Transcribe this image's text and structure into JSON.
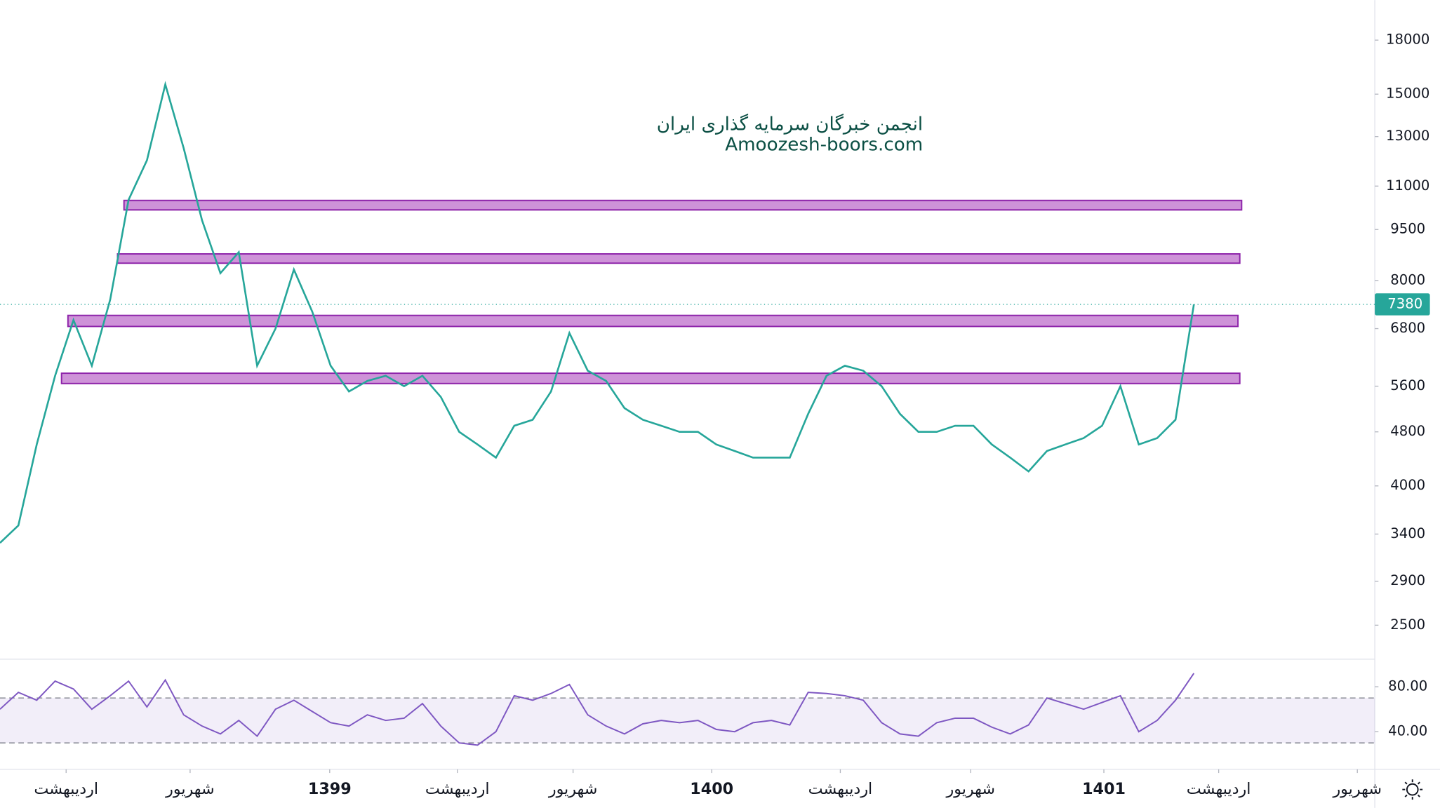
{
  "chart_data": [
    {
      "type": "line",
      "log_scale": true,
      "grid": false,
      "color": "#26a69a",
      "annotations": [
        "انجمن خبرگان سرمایه گذاری ایران",
        "Amoozesh-boors.com"
      ],
      "x": [
        0,
        2,
        4,
        6,
        8,
        10,
        12,
        14,
        16,
        18,
        20,
        22,
        24,
        26,
        28,
        30,
        32,
        34,
        36,
        38,
        40,
        42,
        44,
        46,
        48,
        50,
        52,
        54,
        56,
        58,
        60,
        62,
        64,
        66,
        68,
        70,
        72,
        74,
        76,
        78,
        80,
        82,
        84,
        86,
        88,
        90,
        92,
        94,
        96,
        98,
        100,
        102,
        104,
        106,
        108,
        110,
        112,
        114,
        116,
        118,
        120,
        122,
        124,
        126,
        128,
        130
      ],
      "values": [
        3300,
        3500,
        4600,
        5800,
        7000,
        6000,
        7500,
        10500,
        12000,
        15500,
        12500,
        9800,
        8200,
        8800,
        6000,
        6800,
        8300,
        7200,
        6000,
        5500,
        5700,
        5800,
        5600,
        5800,
        5400,
        4800,
        4600,
        4400,
        4900,
        5000,
        5500,
        6700,
        5900,
        5700,
        5200,
        5000,
        4900,
        4800,
        4800,
        4600,
        4500,
        4400,
        4400,
        4400,
        5100,
        5800,
        6000,
        5900,
        5600,
        5100,
        4800,
        4800,
        4900,
        4900,
        4600,
        4400,
        4200,
        4500,
        4600,
        4700,
        4900,
        5600,
        4600,
        4700,
        5000,
        7380
      ],
      "xlim": [
        0,
        149.7
      ],
      "ylim": [
        2250,
        20600
      ],
      "yticks": [
        18000,
        15000,
        13000,
        11000,
        9500,
        8000,
        6800,
        5600,
        4800,
        4000,
        3400,
        2900,
        2500
      ],
      "zones": [
        {
          "from": 10150,
          "to": 10480,
          "x_start": 13.5,
          "x_end": 135.2
        },
        {
          "from": 8480,
          "to": 8750,
          "x_start": 12.8,
          "x_end": 135
        },
        {
          "from": 6850,
          "to": 7110,
          "x_start": 7.4,
          "x_end": 134.8
        },
        {
          "from": 5650,
          "to": 5850,
          "x_start": 6.7,
          "x_end": 135
        }
      ],
      "zone_color": "#ce93d8",
      "last_price": 7380
    },
    {
      "type": "line",
      "grid": false,
      "color": "#7e57c2",
      "x": [
        0,
        2,
        4,
        6,
        8,
        10,
        12,
        14,
        16,
        18,
        20,
        22,
        24,
        26,
        28,
        30,
        32,
        34,
        36,
        38,
        40,
        42,
        44,
        46,
        48,
        50,
        52,
        54,
        56,
        58,
        60,
        62,
        64,
        66,
        68,
        70,
        72,
        74,
        76,
        78,
        80,
        82,
        84,
        86,
        88,
        90,
        92,
        94,
        96,
        98,
        100,
        102,
        104,
        106,
        108,
        110,
        112,
        114,
        116,
        118,
        120,
        122,
        124,
        126,
        128,
        130
      ],
      "values": [
        60,
        75,
        68,
        85,
        78,
        60,
        72,
        85,
        62,
        86,
        55,
        45,
        38,
        50,
        36,
        60,
        68,
        58,
        48,
        45,
        55,
        50,
        52,
        65,
        45,
        30,
        28,
        40,
        72,
        68,
        74,
        82,
        55,
        45,
        38,
        47,
        50,
        48,
        50,
        42,
        40,
        48,
        50,
        46,
        75,
        74,
        72,
        68,
        48,
        38,
        36,
        48,
        52,
        52,
        44,
        38,
        46,
        70,
        65,
        60,
        66,
        72,
        40,
        50,
        68,
        92
      ],
      "xlim": [
        0,
        149.7
      ],
      "ylim": [
        6.5,
        102.9
      ],
      "yticks": [
        {
          "value": 80,
          "label": "80.00"
        },
        {
          "value": 40,
          "label": "40.00"
        }
      ],
      "bands": [
        70,
        30
      ],
      "xticks": [
        {
          "value": 7.2,
          "label": "اردیبهشت"
        },
        {
          "value": 20.7,
          "label": "شهریور"
        },
        {
          "value": 35.9,
          "label": "1399"
        },
        {
          "value": 49.8,
          "label": "اردیبهشت"
        },
        {
          "value": 62.4,
          "label": "شهریور"
        },
        {
          "value": 77.5,
          "label": "1400"
        },
        {
          "value": 91.5,
          "label": "اردیبهشت"
        },
        {
          "value": 105.7,
          "label": "شهریور"
        },
        {
          "value": 120.2,
          "label": "1401"
        },
        {
          "value": 132.7,
          "label": "اردیبهشت"
        },
        {
          "value": 147.8,
          "label": "شهریور"
        }
      ]
    }
  ]
}
